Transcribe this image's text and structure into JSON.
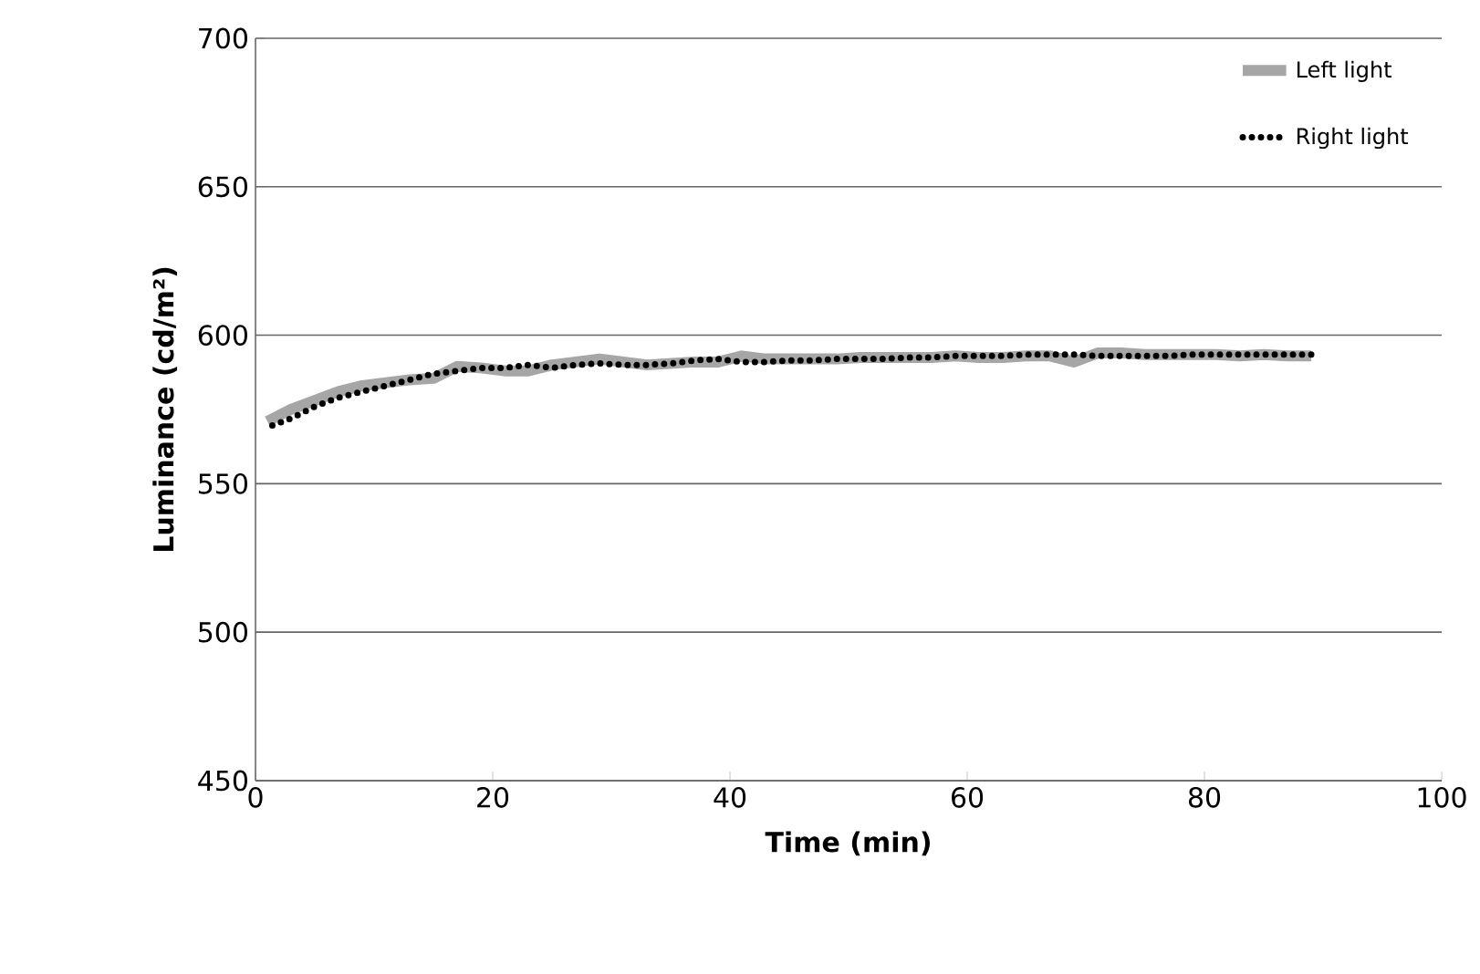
{
  "chart_data": {
    "type": "line",
    "xlabel": "Time (min)",
    "ylabel": "Luminance (cd/m²)",
    "xlim": [
      0,
      100
    ],
    "xticks": [
      0,
      20,
      40,
      60,
      80,
      100
    ],
    "ylim": [
      450,
      700
    ],
    "yticks": [
      450,
      500,
      550,
      600,
      650,
      700
    ],
    "grid": "y",
    "legend": "top right",
    "marker": "none",
    "x": [
      1,
      3,
      5,
      7,
      9,
      11,
      13,
      15,
      17,
      19,
      21,
      23,
      25,
      27,
      29,
      31,
      33,
      35,
      37,
      39,
      41,
      43,
      45,
      47,
      49,
      51,
      53,
      55,
      57,
      59,
      61,
      63,
      65,
      67,
      69,
      71,
      73,
      75,
      77,
      79,
      81,
      83,
      85,
      87,
      89
    ],
    "series": [
      {
        "name": "Left light",
        "color": "#a6a6a6",
        "line_style": "solid",
        "values": [
          571,
          575,
          578,
          581,
          583,
          584,
          585,
          585.5,
          589.5,
          589,
          588,
          588,
          590,
          591,
          592,
          591,
          590,
          590.5,
          591,
          591,
          593,
          592,
          592,
          592,
          592,
          592.5,
          592.5,
          592.5,
          592.5,
          593,
          592.5,
          592.5,
          593,
          593,
          591,
          594,
          594,
          593.5,
          593.5,
          593.5,
          593.5,
          593,
          593.5,
          593,
          593
        ]
      },
      {
        "name": "Right light",
        "color": "#000000",
        "line_style": "dotted",
        "values": [
          569,
          572,
          576,
          579,
          581,
          583,
          585,
          587,
          588,
          589,
          589,
          590,
          589,
          590,
          590.5,
          590,
          590,
          590.5,
          591.5,
          592,
          591,
          591,
          591.5,
          591.5,
          592,
          592,
          592,
          592.5,
          592.5,
          593,
          593,
          593,
          593.5,
          593.5,
          593.5,
          593,
          593,
          593,
          593,
          593.5,
          593.5,
          593.5,
          593.5,
          593.5,
          593.5
        ]
      }
    ]
  }
}
